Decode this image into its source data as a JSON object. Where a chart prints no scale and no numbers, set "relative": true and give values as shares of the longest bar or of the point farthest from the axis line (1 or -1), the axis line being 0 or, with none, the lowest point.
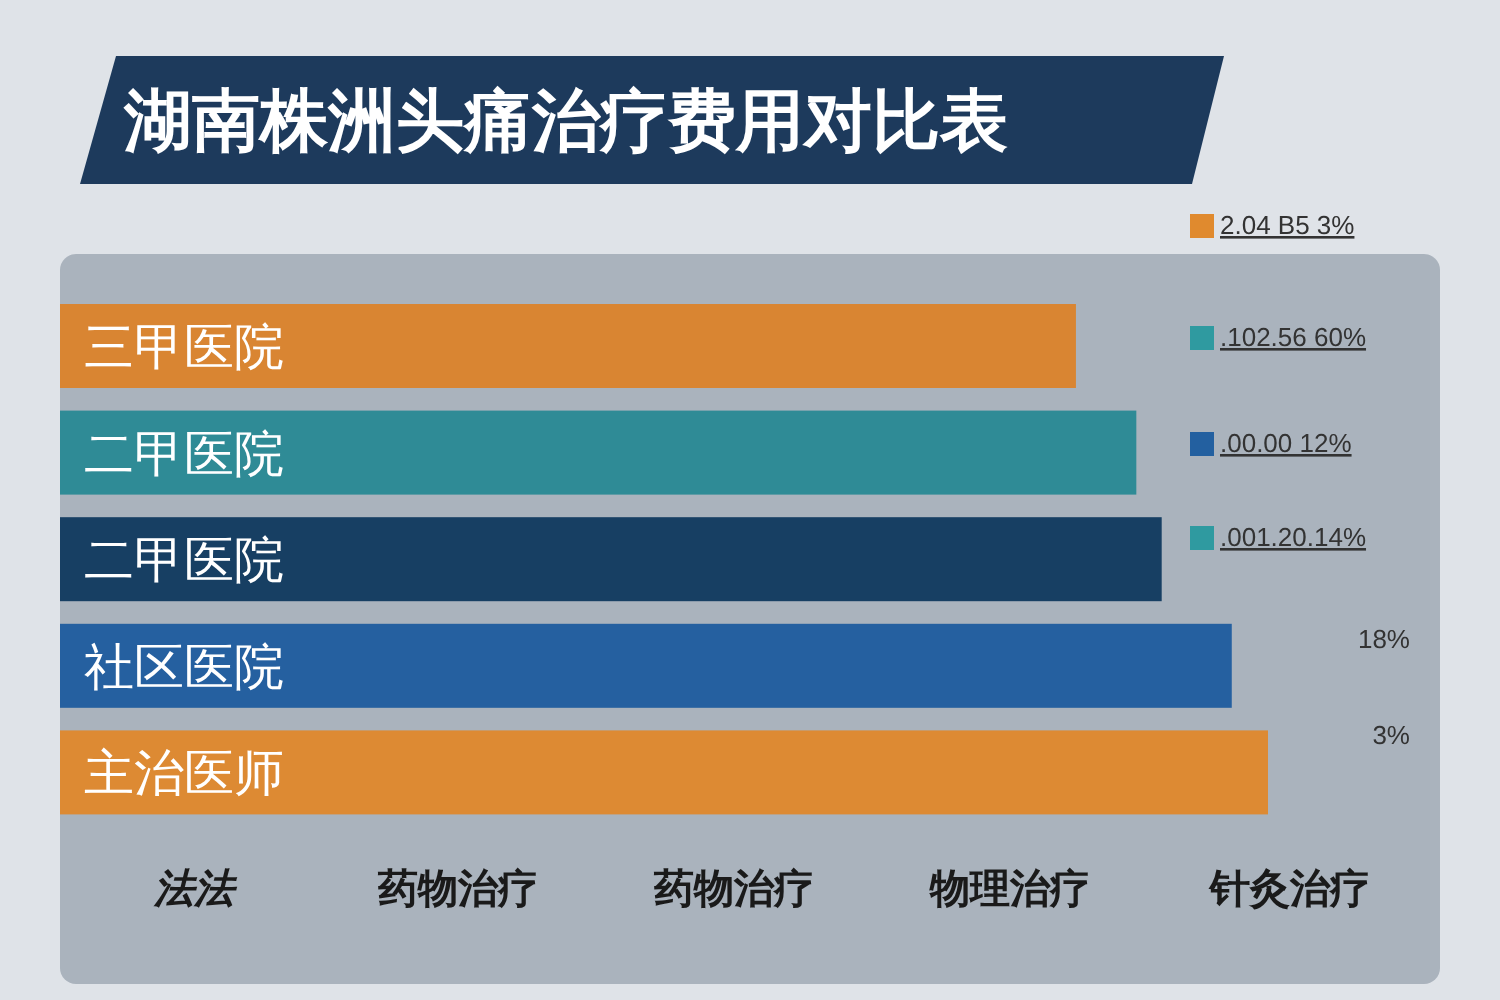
{
  "chart_data": {
    "type": "bar",
    "orientation": "horizontal",
    "relative": true,
    "data_labels": false,
    "title": "湖南株洲头痛治疗费用对比表",
    "categories": [
      "三甲医院",
      "二甲医院",
      "二甲医院",
      "社区医院",
      "主治医师"
    ],
    "values": [
      0.841,
      0.891,
      0.912,
      0.97,
      1
    ],
    "colors": [
      "#d98532",
      "#2f8b96",
      "#173f63",
      "#2560a0",
      "#dd8a33"
    ],
    "annotations": [
      "2.04 B5 3%",
      ".102.56 60%",
      ".00.00 12%",
      ".001.20.14%",
      "18%",
      "3%",
      "法法",
      "药物治疗",
      "药物治疗",
      "物理治疗",
      "针灸治疗"
    ]
  }
}
